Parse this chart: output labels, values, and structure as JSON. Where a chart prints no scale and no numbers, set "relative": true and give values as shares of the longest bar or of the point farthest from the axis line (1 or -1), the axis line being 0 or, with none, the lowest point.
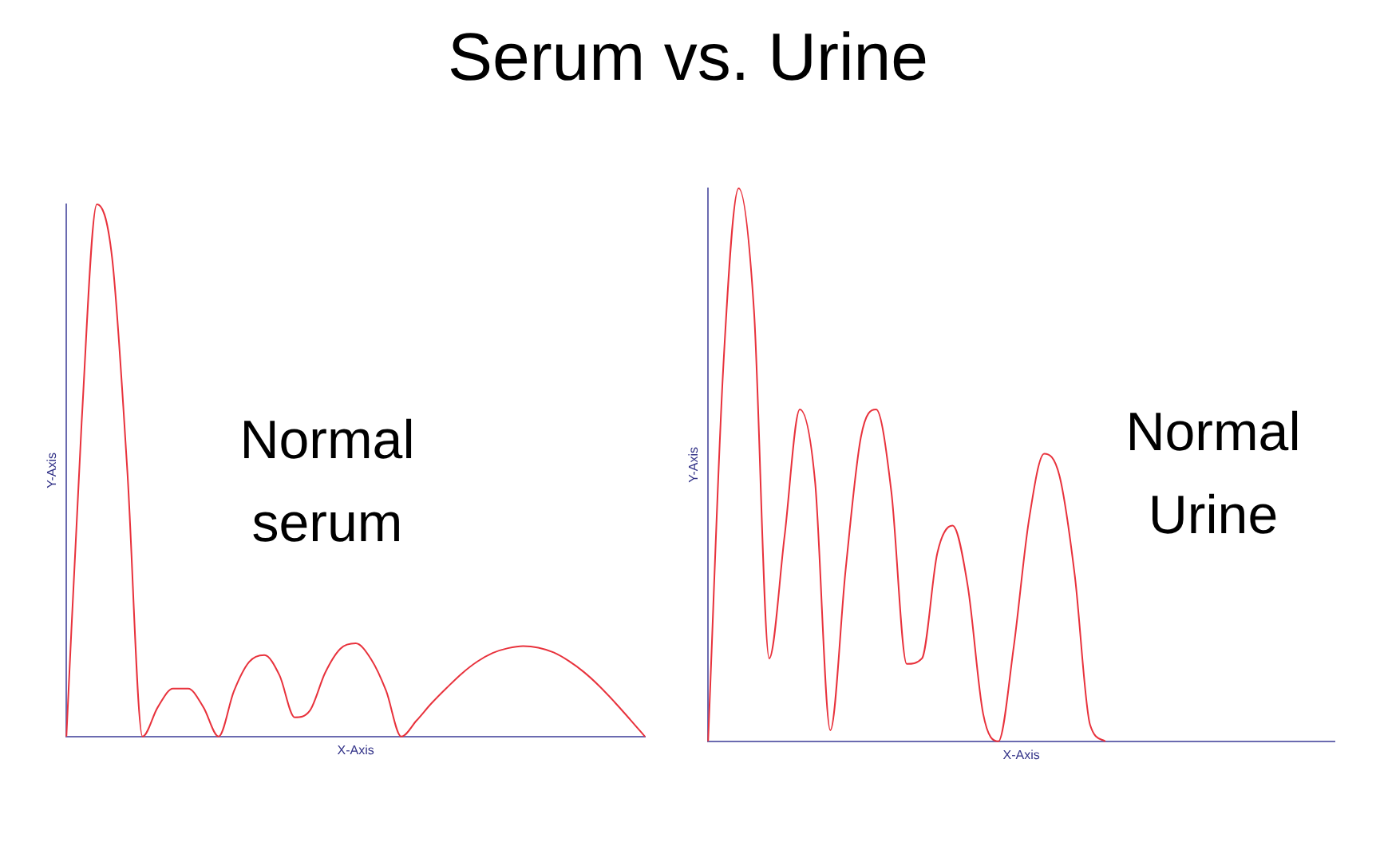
{
  "chart_data": [
    {
      "type": "line",
      "title": "Serum vs. Urine",
      "xlabel": "X-Axis",
      "ylabel": "Y-Axis",
      "relative": true,
      "tick_labels": false,
      "grid": false,
      "marker": "none",
      "line_style": "solid",
      "annotations": [
        "Normal serum"
      ],
      "categories": [
        null,
        null,
        null,
        null,
        null,
        null,
        null,
        null,
        null,
        null,
        null,
        null,
        null,
        null,
        null,
        null,
        null,
        null,
        null,
        null,
        null,
        null,
        null,
        null,
        null,
        null,
        null,
        null,
        null,
        null,
        null,
        null,
        null,
        null,
        null,
        null,
        null,
        null,
        null
      ],
      "series": [
        {
          "color": "#e8323c",
          "values": [
            0,
            0.59,
            1,
            0.9,
            0.5,
            0,
            0.055,
            0.09,
            0.09,
            0.055,
            0,
            0.085,
            0.14,
            0.153,
            0.115,
            0.036,
            0.049,
            0.12,
            0.165,
            0.175,
            0.146,
            0.086,
            0,
            0.03,
            0.063,
            0.092,
            0.119,
            0.141,
            0.157,
            0.166,
            0.17,
            0.167,
            0.158,
            0.142,
            0.121,
            0.095,
            0.065,
            0.033,
            0
          ]
        }
      ]
    },
    {
      "type": "line",
      "xlabel": "X-Axis",
      "ylabel": "Y-Axis",
      "relative": true,
      "tick_labels": false,
      "grid": false,
      "marker": "none",
      "line_style": "solid",
      "annotations": [
        "Normal Urine"
      ],
      "categories": [
        null,
        null,
        null,
        null,
        null,
        null,
        null,
        null,
        null,
        null,
        null,
        null,
        null,
        null,
        null,
        null,
        null,
        null,
        null,
        null,
        null,
        null,
        null,
        null,
        null,
        null,
        null,
        null,
        null,
        null,
        null,
        null,
        null,
        null,
        null,
        null,
        null,
        null,
        null,
        null,
        null,
        null
      ],
      "series": [
        {
          "color": "#e8323c",
          "values": [
            0,
            0.68,
            1,
            0.78,
            0.15,
            0.37,
            0.6,
            0.47,
            0.02,
            0.31,
            0.55,
            0.6,
            0.45,
            0.14,
            0.15,
            0.34,
            0.39,
            0.28,
            0.05,
            0,
            0.17,
            0.4,
            0.52,
            0.48,
            0.3,
            0.03,
            0,
            null,
            null,
            null,
            null,
            null,
            null,
            null,
            null,
            null,
            null,
            null,
            null,
            null,
            null,
            null
          ]
        }
      ]
    }
  ]
}
